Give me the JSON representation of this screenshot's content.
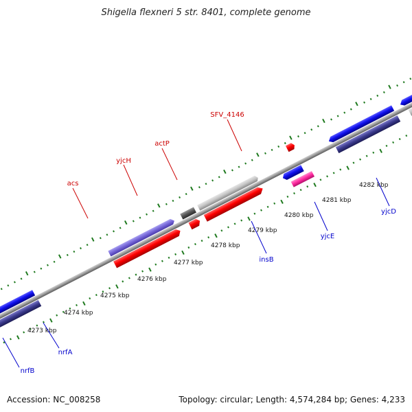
{
  "title": "Shigella flexneri 5 str. 8401, complete genome",
  "footer": {
    "accession": "Accession: NC_008258",
    "topology": "Topology: circular; Length: 4,574,284 bp; Genes: 4,233"
  },
  "colors": {
    "backbone": "#888888",
    "tick": "#1f7a1f",
    "label_top": "#cc0000",
    "label_bottom": "#0000cc"
  },
  "kbp_ticks": [
    "4273 kbp",
    "4274 kbp",
    "4275 kbp",
    "4276 kbp",
    "4277 kbp",
    "4278 kbp",
    "4279 kbp",
    "4280 kbp",
    "4281 kbp",
    "4282 kbp"
  ],
  "gene_labels_top": [
    "acs",
    "yjcH",
    "actP",
    "SFV_4146"
  ],
  "gene_labels_bottom": [
    "nrfB",
    "nrfA",
    "insB",
    "yjcE",
    "yjcD"
  ]
}
